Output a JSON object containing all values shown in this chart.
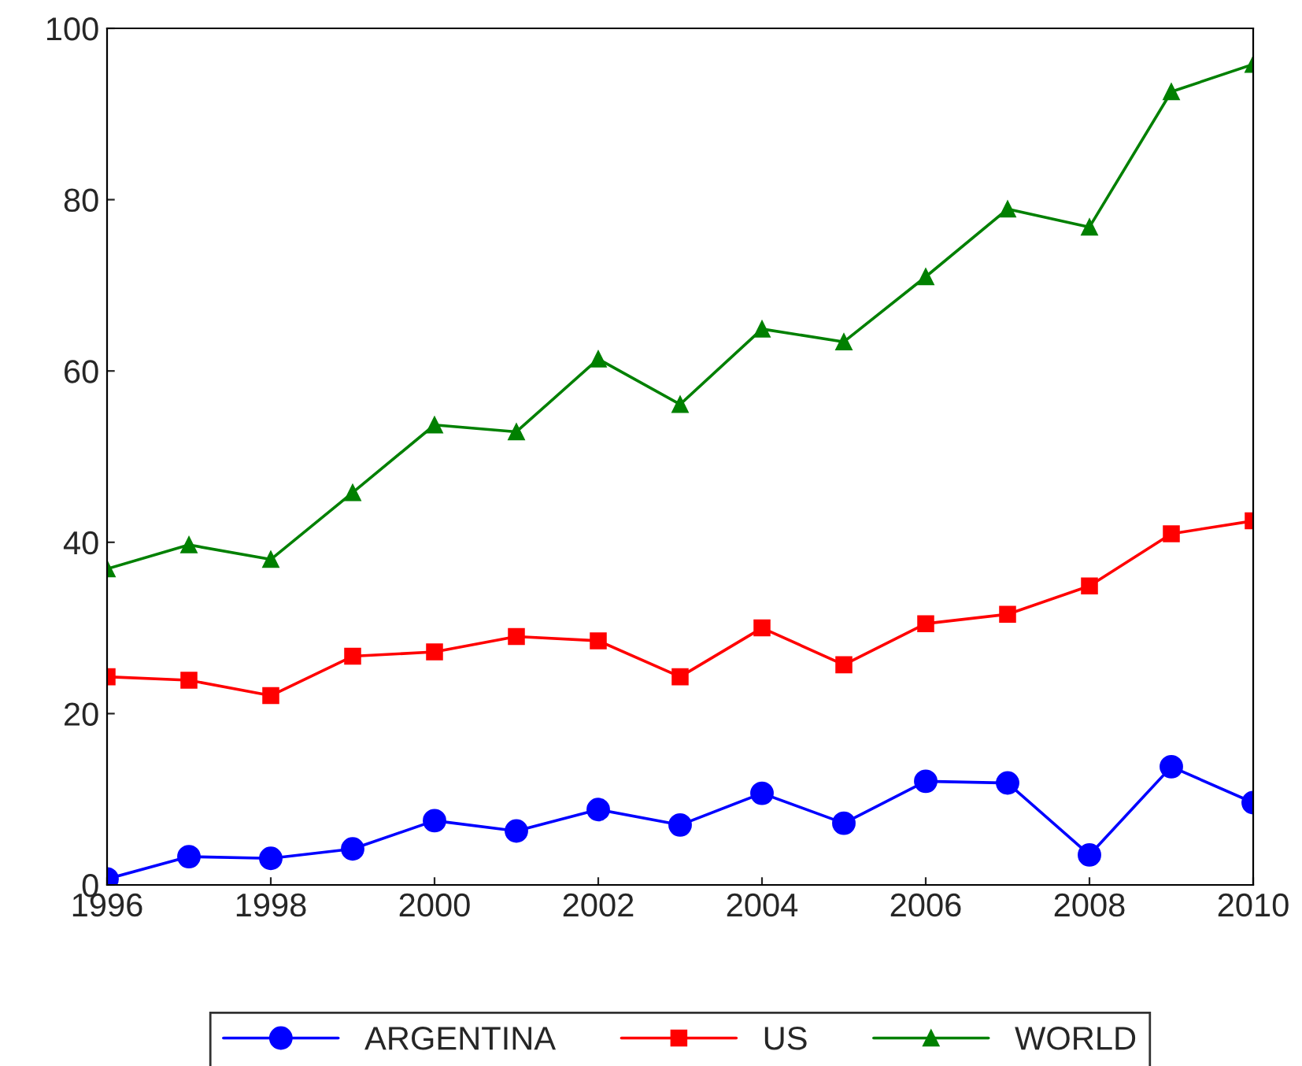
{
  "chart_data": {
    "type": "line",
    "x": [
      1996,
      1997,
      1998,
      1999,
      2000,
      2001,
      2002,
      2003,
      2004,
      2005,
      2006,
      2007,
      2008,
      2009,
      2010
    ],
    "series": [
      {
        "name": "ARGENTINA",
        "color": "#0000ff",
        "marker": "circle",
        "values": [
          0.7,
          3.3,
          3.1,
          4.2,
          7.5,
          6.3,
          8.8,
          7.0,
          10.7,
          7.2,
          12.1,
          11.9,
          3.5,
          13.8,
          9.6
        ]
      },
      {
        "name": "US",
        "color": "#ff0000",
        "marker": "square",
        "values": [
          24.3,
          23.9,
          22.1,
          26.7,
          27.2,
          29.0,
          28.5,
          24.3,
          30.0,
          25.7,
          30.5,
          31.6,
          34.9,
          41.0,
          42.5
        ]
      },
      {
        "name": "WORLD",
        "color": "#008000",
        "marker": "triangle",
        "values": [
          36.9,
          39.7,
          38.0,
          45.8,
          53.7,
          52.9,
          61.4,
          56.1,
          64.9,
          63.4,
          71.0,
          78.9,
          76.8,
          92.6,
          95.8
        ]
      }
    ],
    "xlim": [
      1996,
      2010
    ],
    "xticks": [
      1996,
      1998,
      2000,
      2002,
      2004,
      2006,
      2008,
      2010
    ],
    "ylim": [
      0,
      100
    ],
    "yticks": [
      0,
      20,
      40,
      60,
      80,
      100
    ],
    "legend": "bottom",
    "grid": false,
    "line_style": "solid"
  }
}
